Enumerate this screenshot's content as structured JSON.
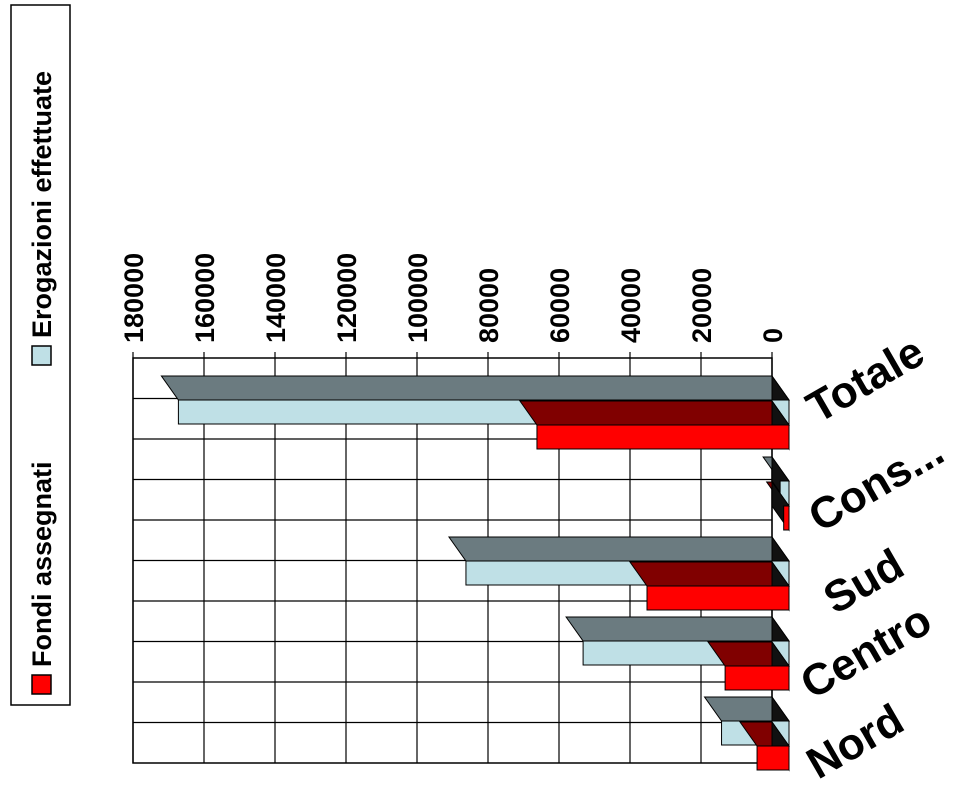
{
  "chart_data": {
    "type": "bar",
    "orientation": "horizontal-3d",
    "categories": [
      "Totale",
      "Cons...",
      "Sud",
      "Centro",
      "Nord"
    ],
    "series": [
      {
        "name": "Fondi assegnati",
        "values": [
          71000,
          1500,
          40000,
          18000,
          9000
        ]
      },
      {
        "name": "Erogazioni effettuate",
        "values": [
          172000,
          2500,
          91000,
          58000,
          19000
        ]
      }
    ],
    "xlim": [
      0,
      180000
    ],
    "ticks": [
      "0",
      "20000",
      "40000",
      "60000",
      "80000",
      "100000",
      "120000",
      "140000",
      "160000",
      "180000"
    ],
    "grid": true,
    "legend_position": "left"
  },
  "colors": {
    "fondi_front": "#ff0000",
    "fondi_top": "#800000",
    "erog_front": "#bfe0e6",
    "erog_top": "#6b7b80",
    "side": "#111111"
  }
}
